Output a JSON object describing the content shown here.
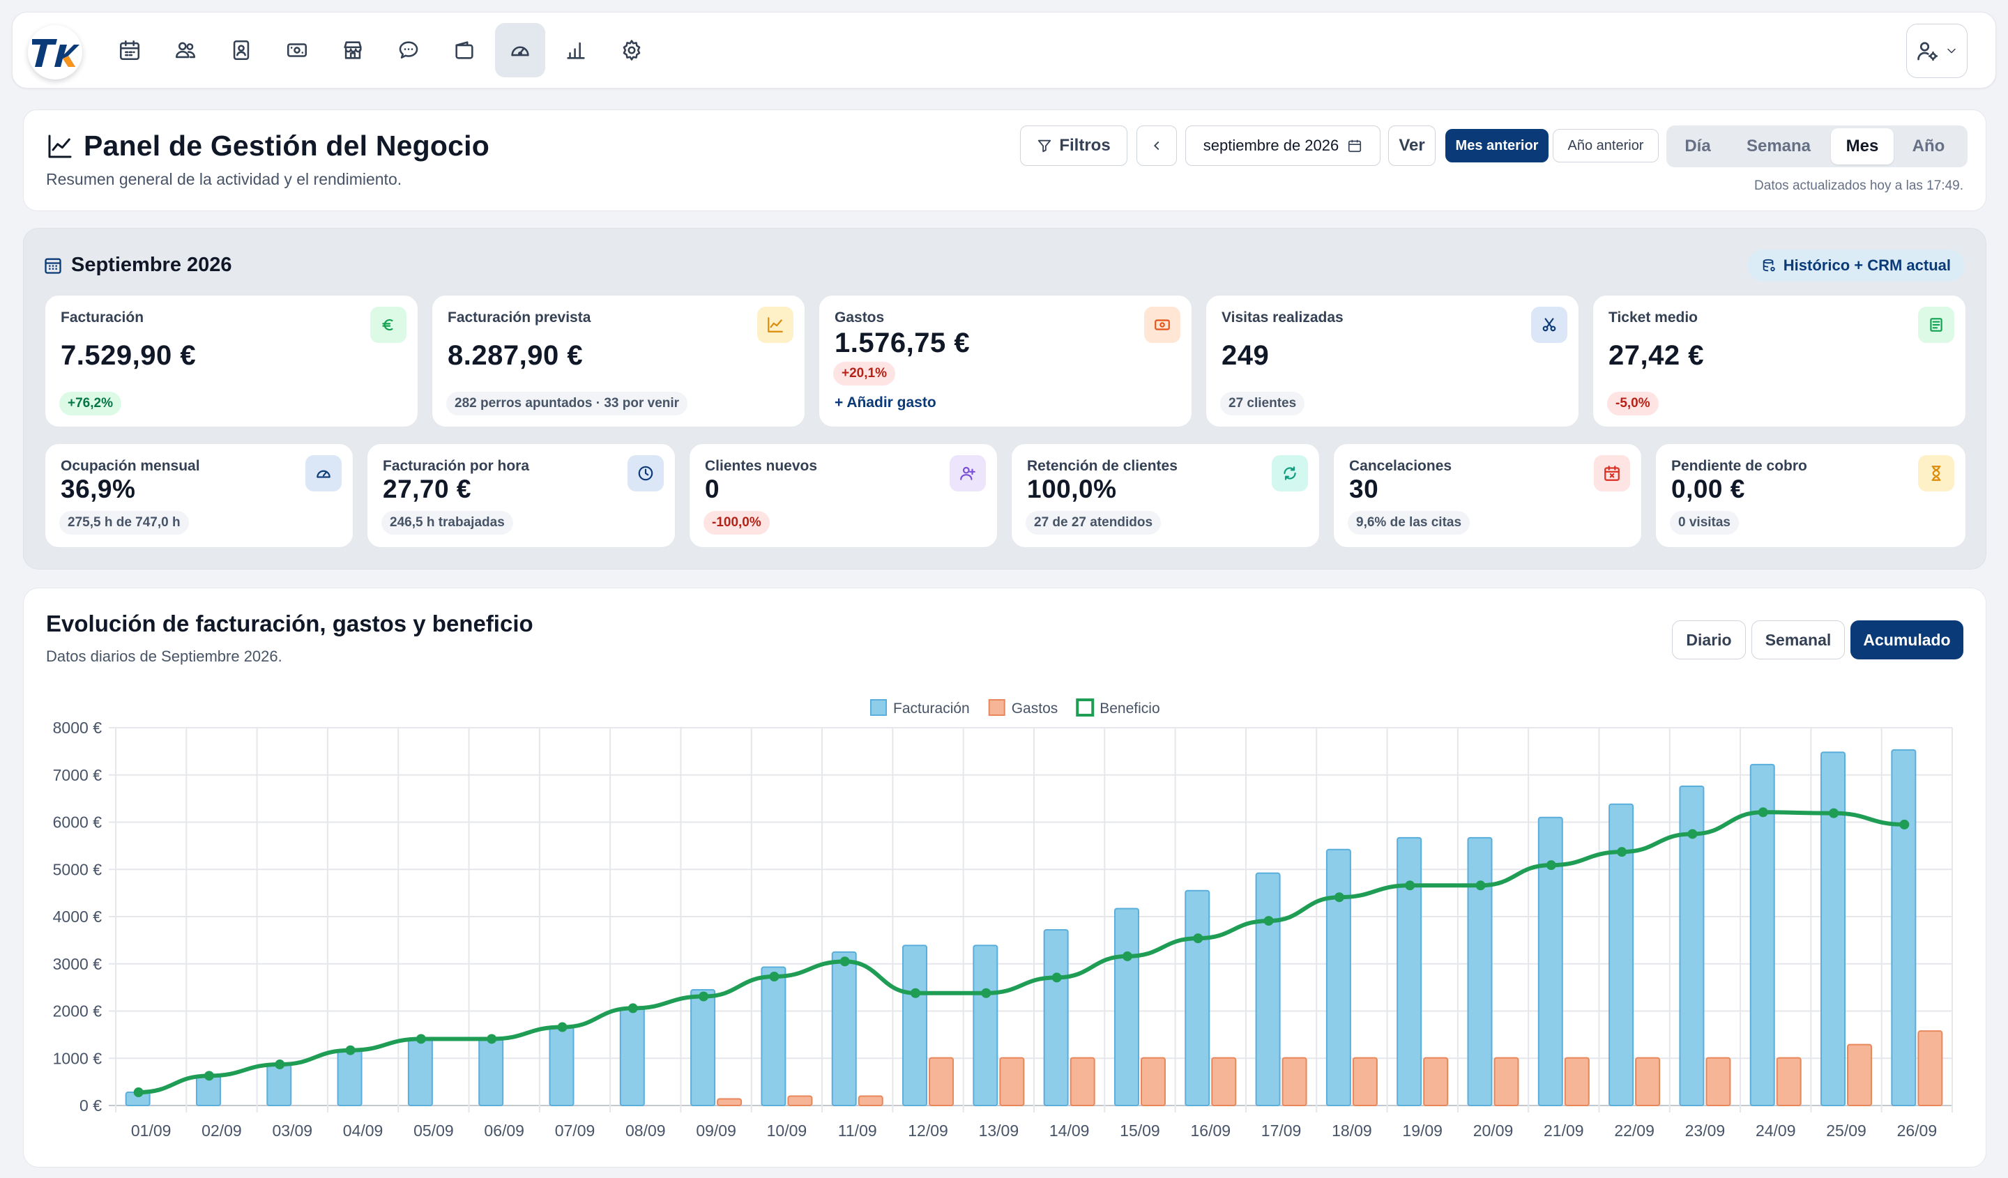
{
  "nav": {
    "logo_text": "TK",
    "items": [
      {
        "icon": "calendar-icon"
      },
      {
        "icon": "users-icon"
      },
      {
        "icon": "contact-card-icon"
      },
      {
        "icon": "cash-icon"
      },
      {
        "icon": "store-icon"
      },
      {
        "icon": "chat-icon"
      },
      {
        "icon": "wallet-icon"
      },
      {
        "icon": "dashboard-gauge-icon",
        "active": true
      },
      {
        "icon": "bar-chart-icon"
      },
      {
        "icon": "settings-icon"
      }
    ],
    "user_icon": "user-settings-icon"
  },
  "header": {
    "title": "Panel de Gestión del Negocio",
    "subtitle": "Resumen general de la actividad y el rendimiento.",
    "filters_label": "Filtros",
    "date_value": "septiembre de 2026",
    "ver_label": "Ver",
    "prev_month_label": "Mes anterior",
    "prev_year_label": "Año anterior",
    "period_tabs": [
      "Día",
      "Semana",
      "Mes",
      "Año"
    ],
    "active_period": "Mes",
    "updated_text": "Datos actualizados hoy a las 17:49."
  },
  "kpis": {
    "month_title": "Septiembre 2026",
    "source_label": "Histórico + CRM actual",
    "top": [
      {
        "label": "Facturación",
        "value": "7.529,90 €",
        "chip": "+76,2%",
        "chip_type": "green",
        "icon": "euro-icon"
      },
      {
        "label": "Facturación prevista",
        "value": "8.287,90 €",
        "chip": "282 perros apuntados · 33 por venir",
        "chip_type": "gray",
        "icon": "trend-up-icon"
      },
      {
        "label": "Gastos",
        "value": "1.576,75 €",
        "chip": "+20,1%",
        "chip_type": "red",
        "icon": "cash-icon",
        "link": "+ Añadir gasto"
      },
      {
        "label": "Visitas realizadas",
        "value": "249",
        "chip": "27 clientes",
        "chip_type": "gray",
        "icon": "scissors-icon"
      },
      {
        "label": "Ticket medio",
        "value": "27,42 €",
        "chip": "-5,0%",
        "chip_type": "red",
        "icon": "receipt-icon"
      }
    ],
    "bottom": [
      {
        "label": "Ocupación mensual",
        "value": "36,9%",
        "chip": "275,5 h de 747,0 h",
        "chip_type": "gray",
        "icon": "gauge-icon"
      },
      {
        "label": "Facturación por hora",
        "value": "27,70 €",
        "chip": "246,5 h trabajadas",
        "chip_type": "gray",
        "icon": "clock-icon"
      },
      {
        "label": "Clientes nuevos",
        "value": "0",
        "chip": "-100,0%",
        "chip_type": "red",
        "icon": "user-plus-icon"
      },
      {
        "label": "Retención de clientes",
        "value": "100,0%",
        "chip": "27 de 27 atendidos",
        "chip_type": "gray",
        "icon": "refresh-icon"
      },
      {
        "label": "Cancelaciones",
        "value": "30",
        "chip": "9,6% de las citas",
        "chip_type": "gray",
        "icon": "calendar-x-icon"
      },
      {
        "label": "Pendiente de cobro",
        "value": "0,00 €",
        "chip": "0 visitas",
        "chip_type": "gray",
        "icon": "hourglass-icon"
      }
    ]
  },
  "chart_panel": {
    "title": "Evolución de facturación, gastos y beneficio",
    "subtitle": "Datos diarios de Septiembre 2026.",
    "modes": [
      "Diario",
      "Semanal",
      "Acumulado"
    ],
    "active_mode": "Acumulado"
  },
  "chart_data": {
    "type": "bar",
    "categories": [
      "01/09",
      "02/09",
      "03/09",
      "04/09",
      "05/09",
      "06/09",
      "07/09",
      "08/09",
      "09/09",
      "10/09",
      "11/09",
      "12/09",
      "13/09",
      "14/09",
      "15/09",
      "16/09",
      "17/09",
      "18/09",
      "19/09",
      "20/09",
      "21/09",
      "22/09",
      "23/09",
      "24/09",
      "25/09",
      "26/09"
    ],
    "series": [
      {
        "name": "Facturación",
        "kind": "bar",
        "color": "#8ecdea",
        "border": "#5aaedb",
        "values": [
          280,
          630,
          870,
          1170,
          1410,
          1410,
          1660,
          2060,
          2450,
          2930,
          3250,
          3390,
          3390,
          3720,
          4170,
          4550,
          4920,
          5420,
          5670,
          5670,
          6100,
          6380,
          6760,
          7220,
          7480,
          7530
        ]
      },
      {
        "name": "Gastos",
        "kind": "bar",
        "color": "#f6b596",
        "border": "#e8875b",
        "values": [
          0,
          0,
          0,
          0,
          0,
          0,
          0,
          0,
          140,
          200,
          200,
          1010,
          1010,
          1010,
          1010,
          1010,
          1010,
          1010,
          1010,
          1010,
          1010,
          1010,
          1010,
          1010,
          1290,
          1577
        ]
      },
      {
        "name": "Beneficio",
        "kind": "line",
        "color": "#1f9d55",
        "values": [
          280,
          630,
          870,
          1170,
          1410,
          1410,
          1660,
          2060,
          2310,
          2730,
          3050,
          2380,
          2380,
          2710,
          3160,
          3540,
          3910,
          4410,
          4660,
          4660,
          5090,
          5370,
          5750,
          6210,
          6190,
          5950
        ]
      }
    ],
    "y_ticks": [
      "0 €",
      "1000 €",
      "2000 €",
      "3000 €",
      "4000 €",
      "5000 €",
      "6000 €",
      "7000 €",
      "8000 €"
    ],
    "ylim": [
      0,
      8000
    ],
    "grid": true,
    "legend_position": "top-center"
  }
}
